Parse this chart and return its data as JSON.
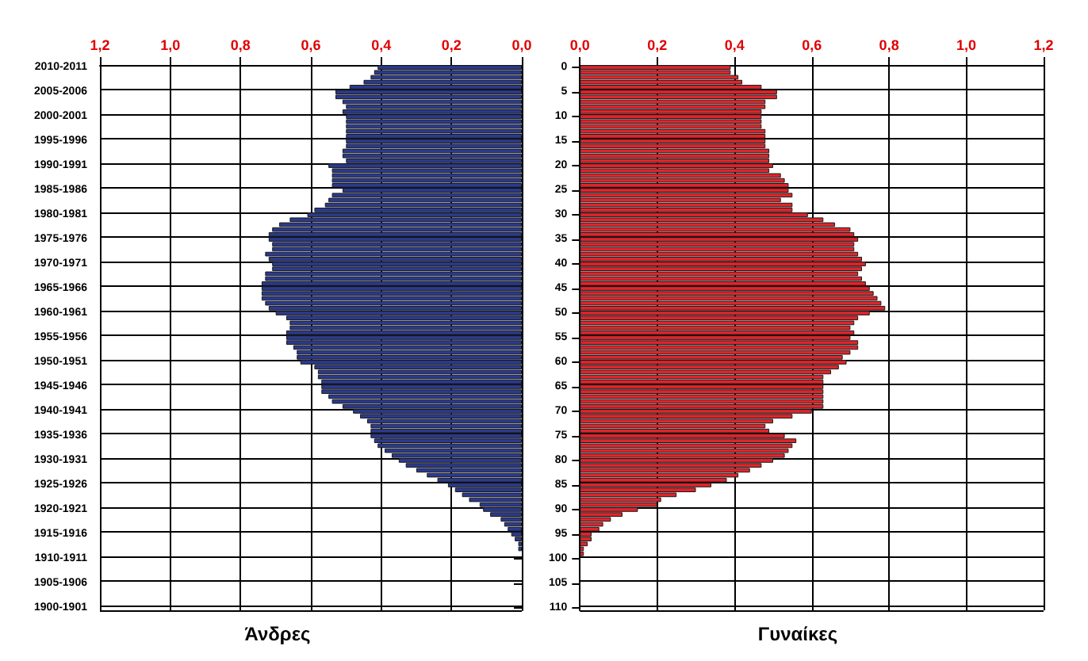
{
  "chart_data": [
    {
      "type": "bar",
      "orientation": "horizontal",
      "title": "Άνδρες",
      "color": "#2b3a8c",
      "grid": true,
      "categories": [
        "2010-2011",
        null,
        null,
        null,
        null,
        "2005-2006",
        null,
        null,
        null,
        null,
        "2000-2001",
        null,
        null,
        null,
        null,
        "1995-1996",
        null,
        null,
        null,
        null,
        "1990-1991",
        null,
        null,
        null,
        null,
        "1985-1986",
        null,
        null,
        null,
        null,
        "1980-1981",
        null,
        null,
        null,
        null,
        "1975-1976",
        null,
        null,
        null,
        null,
        "1970-1971",
        null,
        null,
        null,
        null,
        "1965-1966",
        null,
        null,
        null,
        null,
        "1960-1961",
        null,
        null,
        null,
        null,
        "1955-1956",
        null,
        null,
        null,
        null,
        "1950-1951",
        null,
        null,
        null,
        null,
        "1945-1946",
        null,
        null,
        null,
        null,
        "1940-1941",
        null,
        null,
        null,
        null,
        "1935-1936",
        null,
        null,
        null,
        null,
        "1930-1931",
        null,
        null,
        null,
        null,
        "1925-1926",
        null,
        null,
        null,
        null,
        "1920-1921",
        null,
        null,
        null,
        null,
        "1915-1916",
        null,
        null,
        null,
        null,
        "1910-1911",
        null,
        null,
        null,
        null,
        "1905-1906",
        null,
        null,
        null,
        null,
        "1900-1901"
      ],
      "values": [
        0.41,
        0.42,
        0.43,
        0.45,
        0.49,
        0.53,
        0.53,
        0.51,
        0.5,
        0.51,
        0.5,
        0.5,
        0.5,
        0.5,
        0.5,
        0.5,
        0.5,
        0.51,
        0.51,
        0.5,
        0.55,
        0.54,
        0.54,
        0.54,
        0.54,
        0.51,
        0.54,
        0.55,
        0.56,
        0.59,
        0.61,
        0.66,
        0.69,
        0.71,
        0.72,
        0.72,
        0.71,
        0.71,
        0.73,
        0.72,
        0.71,
        0.71,
        0.73,
        0.73,
        0.74,
        0.74,
        0.74,
        0.74,
        0.73,
        0.72,
        0.7,
        0.67,
        0.66,
        0.66,
        0.67,
        0.67,
        0.67,
        0.65,
        0.64,
        0.64,
        0.63,
        0.59,
        0.58,
        0.58,
        0.57,
        0.57,
        0.57,
        0.55,
        0.54,
        0.51,
        0.48,
        0.46,
        0.44,
        0.43,
        0.43,
        0.43,
        0.42,
        0.41,
        0.39,
        0.37,
        0.35,
        0.33,
        0.3,
        0.27,
        0.24,
        0.21,
        0.19,
        0.17,
        0.15,
        0.12,
        0.11,
        0.09,
        0.06,
        0.05,
        0.04,
        0.03,
        0.02,
        0.01,
        0.01,
        0,
        0,
        0,
        0,
        0,
        0,
        0,
        0,
        0,
        0,
        0,
        0
      ],
      "xlim": [
        1.2,
        0
      ],
      "xticks": [
        {
          "value": 0,
          "label": "0,0"
        },
        {
          "value": 0.2,
          "label": "0,2"
        },
        {
          "value": 0.4,
          "label": "0,4"
        },
        {
          "value": 0.6,
          "label": "0,6"
        },
        {
          "value": 0.8,
          "label": "0,8"
        },
        {
          "value": 1,
          "label": "1,0"
        },
        {
          "value": 1.2,
          "label": "1,2"
        }
      ]
    },
    {
      "type": "bar",
      "orientation": "horizontal",
      "title": "Γυναίκες",
      "color": "#e0242b",
      "grid": true,
      "categories": [
        "0",
        null,
        null,
        null,
        null,
        "5",
        null,
        null,
        null,
        null,
        "10",
        null,
        null,
        null,
        null,
        "15",
        null,
        null,
        null,
        null,
        "20",
        null,
        null,
        null,
        null,
        "25",
        null,
        null,
        null,
        null,
        "30",
        null,
        null,
        null,
        null,
        "35",
        null,
        null,
        null,
        null,
        "40",
        null,
        null,
        null,
        null,
        "45",
        null,
        null,
        null,
        null,
        "50",
        null,
        null,
        null,
        null,
        "55",
        null,
        null,
        null,
        null,
        "60",
        null,
        null,
        null,
        null,
        "65",
        null,
        null,
        null,
        null,
        "70",
        null,
        null,
        null,
        null,
        "75",
        null,
        null,
        null,
        null,
        "80",
        null,
        null,
        null,
        null,
        "85",
        null,
        null,
        null,
        null,
        "90",
        null,
        null,
        null,
        null,
        "95",
        null,
        null,
        null,
        null,
        "100",
        null,
        null,
        null,
        null,
        "105",
        null,
        null,
        null,
        null,
        "110"
      ],
      "values": [
        0.39,
        0.39,
        0.41,
        0.42,
        0.47,
        0.51,
        0.51,
        0.48,
        0.48,
        0.47,
        0.47,
        0.47,
        0.47,
        0.48,
        0.48,
        0.48,
        0.48,
        0.49,
        0.49,
        0.49,
        0.5,
        0.49,
        0.52,
        0.53,
        0.54,
        0.54,
        0.55,
        0.52,
        0.55,
        0.55,
        0.59,
        0.63,
        0.66,
        0.7,
        0.71,
        0.72,
        0.71,
        0.71,
        0.72,
        0.73,
        0.74,
        0.73,
        0.72,
        0.73,
        0.74,
        0.75,
        0.76,
        0.77,
        0.78,
        0.79,
        0.75,
        0.72,
        0.71,
        0.7,
        0.71,
        0.7,
        0.72,
        0.72,
        0.7,
        0.68,
        0.69,
        0.67,
        0.65,
        0.63,
        0.63,
        0.63,
        0.63,
        0.63,
        0.63,
        0.63,
        0.6,
        0.55,
        0.5,
        0.48,
        0.49,
        0.53,
        0.56,
        0.55,
        0.54,
        0.53,
        0.5,
        0.47,
        0.44,
        0.41,
        0.38,
        0.34,
        0.3,
        0.25,
        0.21,
        0.2,
        0.15,
        0.11,
        0.08,
        0.06,
        0.05,
        0.03,
        0.03,
        0.02,
        0.01,
        0.01,
        0,
        0,
        0,
        0,
        0,
        0,
        0,
        0,
        0,
        0,
        0
      ],
      "xlim": [
        0,
        1.2
      ],
      "xticks": [
        {
          "value": 0,
          "label": "0,0"
        },
        {
          "value": 0.2,
          "label": "0,2"
        },
        {
          "value": 0.4,
          "label": "0,4"
        },
        {
          "value": 0.6,
          "label": "0,6"
        },
        {
          "value": 0.8,
          "label": "0,8"
        },
        {
          "value": 1,
          "label": "1,0"
        },
        {
          "value": 1.2,
          "label": "1,2"
        }
      ]
    }
  ]
}
